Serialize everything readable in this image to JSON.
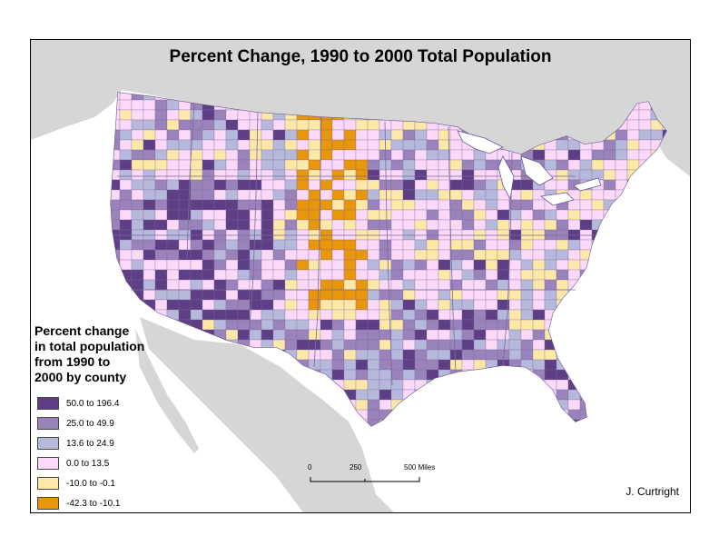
{
  "title": "Percent Change, 1990 to 2000 Total Population",
  "legend": {
    "title_lines": [
      "Percent change",
      "in total population",
      "from 1990 to",
      "2000 by county"
    ],
    "classes": [
      {
        "label": "50.0 to 196.4",
        "color": "#5e3f86"
      },
      {
        "label": "25.0 to 49.9",
        "color": "#9a82bb"
      },
      {
        "label": "13.6 to 24.9",
        "color": "#b7b9dc"
      },
      {
        "label": "0.0 to 13.5",
        "color": "#fcd9f8"
      },
      {
        "label": "-10.0 to -0.1",
        "color": "#fde8a8"
      },
      {
        "label": "-42.3 to -10.1",
        "color": "#e8960c"
      }
    ]
  },
  "scale_bar": {
    "ticks": [
      "0",
      "250",
      "500 Miles"
    ]
  },
  "author": "J. Curtright",
  "colors": {
    "background_land": "#d6d6d6",
    "water": "#ffffff",
    "state_lines": "#8a7aa8"
  }
}
